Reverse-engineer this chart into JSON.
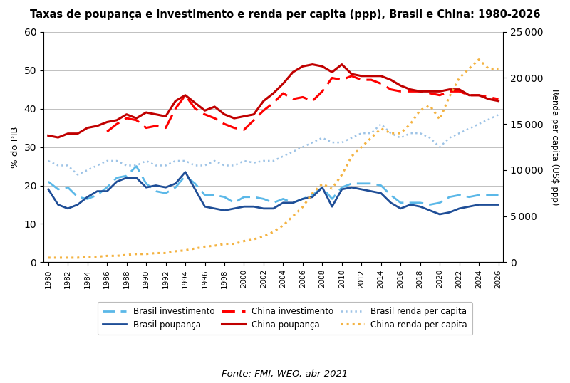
{
  "title": "Taxas de poupança e investimento e renda per capita (ppp), Brasil e China: 1980-2026",
  "ylabel_left": "% do PIB",
  "ylabel_right": "Renda per capita (US$ ppp)",
  "source": "Fonte: FMI, WEO, abr 2021",
  "years": [
    1980,
    1981,
    1982,
    1983,
    1984,
    1985,
    1986,
    1987,
    1988,
    1989,
    1990,
    1991,
    1992,
    1993,
    1994,
    1995,
    1996,
    1997,
    1998,
    1999,
    2000,
    2001,
    2002,
    2003,
    2004,
    2005,
    2006,
    2007,
    2008,
    2009,
    2010,
    2011,
    2012,
    2013,
    2014,
    2015,
    2016,
    2017,
    2018,
    2019,
    2020,
    2021,
    2022,
    2023,
    2024,
    2025,
    2026
  ],
  "brasil_investimento": [
    21.0,
    19.0,
    19.5,
    17.0,
    16.5,
    17.5,
    19.5,
    22.0,
    22.5,
    25.0,
    20.5,
    18.5,
    18.0,
    19.5,
    22.5,
    20.5,
    17.5,
    17.5,
    17.0,
    15.5,
    17.0,
    17.0,
    16.5,
    15.5,
    16.5,
    15.5,
    16.5,
    17.5,
    19.5,
    16.5,
    19.5,
    20.5,
    20.5,
    20.5,
    20.0,
    17.5,
    15.5,
    15.5,
    15.5,
    15.0,
    15.5,
    17.0,
    17.5,
    17.0,
    17.5,
    17.5,
    17.5
  ],
  "brasil_poupanca": [
    19.0,
    15.0,
    14.0,
    15.0,
    17.0,
    18.5,
    18.5,
    21.0,
    22.0,
    22.0,
    19.5,
    20.0,
    19.5,
    20.5,
    23.5,
    19.0,
    14.5,
    14.0,
    13.5,
    14.0,
    14.5,
    14.5,
    14.0,
    14.0,
    15.5,
    15.5,
    16.5,
    17.0,
    19.5,
    14.5,
    19.0,
    19.5,
    19.0,
    18.5,
    18.0,
    15.5,
    14.0,
    15.0,
    14.5,
    13.5,
    12.5,
    13.0,
    14.0,
    14.5,
    15.0,
    15.0,
    15.0
  ],
  "china_investimento": [
    null,
    null,
    null,
    null,
    null,
    null,
    34.0,
    36.0,
    37.5,
    37.0,
    35.0,
    35.5,
    35.0,
    40.0,
    43.5,
    40.0,
    38.5,
    37.5,
    36.0,
    35.0,
    34.5,
    37.0,
    39.5,
    41.5,
    44.0,
    42.5,
    43.0,
    42.0,
    44.5,
    48.0,
    47.5,
    48.5,
    47.5,
    47.5,
    46.5,
    45.0,
    44.5,
    44.5,
    44.5,
    44.0,
    43.5,
    44.5,
    44.5,
    43.5,
    43.5,
    43.0,
    42.5
  ],
  "china_poupanca": [
    33.0,
    32.5,
    33.5,
    33.5,
    35.0,
    35.5,
    36.5,
    37.0,
    38.5,
    37.5,
    39.0,
    38.5,
    38.0,
    42.0,
    43.5,
    41.5,
    39.5,
    40.5,
    38.5,
    37.5,
    38.0,
    38.5,
    42.0,
    44.0,
    46.5,
    49.5,
    51.0,
    51.5,
    51.0,
    49.5,
    51.5,
    49.0,
    48.5,
    48.5,
    48.5,
    47.5,
    46.0,
    45.0,
    44.5,
    44.5,
    44.5,
    45.0,
    45.0,
    43.5,
    43.5,
    42.5,
    42.0
  ],
  "brasil_renda_pc": [
    11000,
    10500,
    10500,
    9500,
    10000,
    10500,
    11000,
    11000,
    10500,
    10500,
    11000,
    10500,
    10500,
    11000,
    11000,
    10500,
    10500,
    11000,
    10500,
    10500,
    11000,
    10800,
    11000,
    11000,
    11500,
    12000,
    12500,
    13000,
    13500,
    13000,
    13000,
    13500,
    14000,
    14000,
    15000,
    14000,
    13500,
    14000,
    14000,
    13500,
    12500,
    13500,
    14000,
    14500,
    15000,
    15500,
    16000
  ],
  "china_renda_pc": [
    500,
    500,
    500,
    500,
    600,
    600,
    700,
    700,
    800,
    900,
    900,
    1000,
    1000,
    1200,
    1300,
    1500,
    1700,
    1800,
    2000,
    2000,
    2300,
    2500,
    2800,
    3300,
    4000,
    5000,
    6000,
    7500,
    8500,
    8000,
    9500,
    11500,
    12500,
    13500,
    14500,
    14000,
    14000,
    15000,
    16500,
    17000,
    15500,
    18000,
    20000,
    21000,
    22000,
    21000,
    21000
  ],
  "ylim_left": [
    0,
    60
  ],
  "ylim_right": [
    0,
    25000
  ],
  "yticks_left": [
    0,
    10,
    20,
    30,
    40,
    50,
    60
  ],
  "yticks_right": [
    0,
    5000,
    10000,
    15000,
    20000,
    25000
  ],
  "color_brasil_inv": "#5BB8E8",
  "color_brasil_poup": "#1F4E97",
  "color_china_inv": "#FF0000",
  "color_china_poup": "#C00000",
  "color_brasil_renda": "#9DC3E6",
  "color_china_renda": "#F4B342",
  "bg_color": "#FFFFFF",
  "grid_color": "#C0C0C0",
  "legend_labels": [
    "Brasil investimento",
    "Brasil poupança",
    "China investimento",
    "China poupança",
    "Brasil renda per capita",
    "China renda per capita"
  ]
}
